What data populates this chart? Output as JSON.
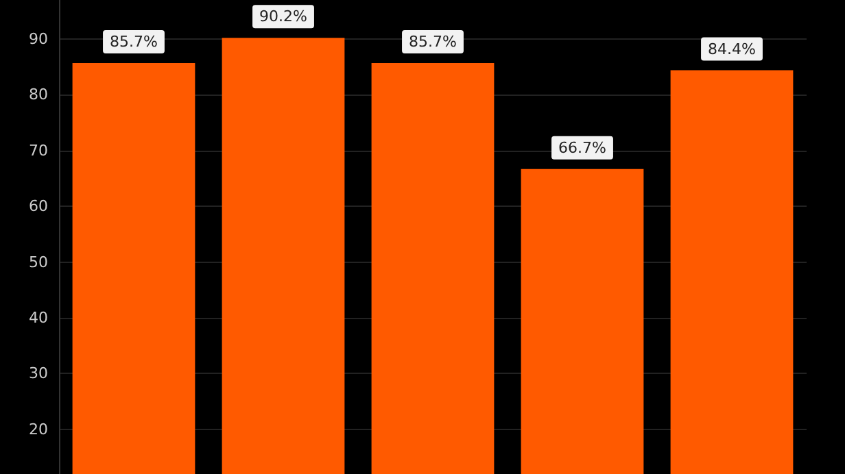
{
  "chart_data": {
    "type": "bar",
    "categories": [
      null,
      null,
      null,
      null,
      null
    ],
    "values": [
      85.7,
      90.2,
      85.7,
      66.7,
      84.4
    ],
    "value_labels": [
      "85.7%",
      "90.2%",
      "85.7%",
      "66.7%",
      "84.4%"
    ],
    "color": "#ff5a00",
    "ylim": [
      12,
      97
    ],
    "yticks": [
      20,
      30,
      40,
      50,
      60,
      70,
      80,
      90
    ],
    "grid": "y"
  }
}
